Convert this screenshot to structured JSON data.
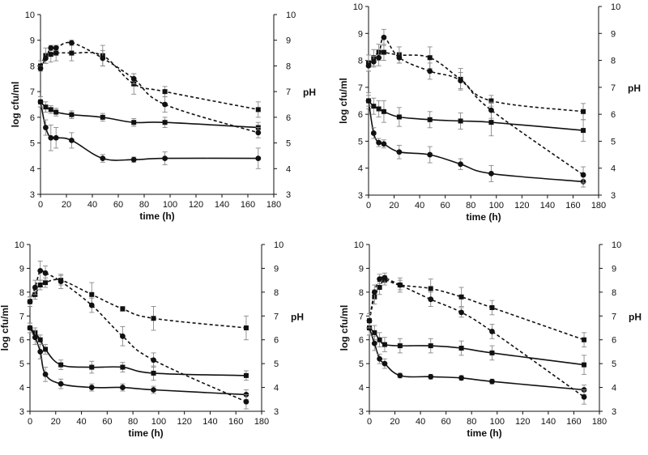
{
  "figure": {
    "panel_labels": [
      "top-left",
      "top-right",
      "bottom-left",
      "bottom-right"
    ]
  },
  "chart_data": [
    {
      "type": "line",
      "panel": "top-left",
      "xlabel": "time (h)",
      "ylabel": "log cfu/ml",
      "y2label": "pH",
      "xlim": [
        0,
        180
      ],
      "ylim": [
        3,
        10
      ],
      "y2lim": [
        3,
        10
      ],
      "xticks": [
        0,
        20,
        40,
        60,
        80,
        100,
        120,
        140,
        160,
        180
      ],
      "yticks": [
        3,
        4,
        5,
        6,
        7,
        8,
        9,
        10
      ],
      "series": [
        {
          "name": "count-square",
          "axis": "left",
          "line": "solid",
          "marker": "square",
          "x": [
            0,
            4,
            8,
            12,
            24,
            48,
            72,
            96,
            168
          ],
          "y": [
            6.6,
            6.4,
            6.3,
            6.2,
            6.1,
            6.0,
            5.8,
            5.8,
            5.6
          ],
          "err": [
            0.2,
            0.2,
            0.15,
            0.15,
            0.15,
            0.15,
            0.15,
            0.2,
            0.2
          ]
        },
        {
          "name": "count-circle",
          "axis": "left",
          "line": "solid",
          "marker": "circle",
          "x": [
            0,
            4,
            8,
            12,
            24,
            48,
            72,
            96,
            168
          ],
          "y": [
            6.6,
            5.6,
            5.2,
            5.2,
            5.1,
            4.4,
            4.35,
            4.4,
            4.4
          ],
          "err": [
            0.2,
            0.3,
            0.5,
            0.4,
            0.3,
            0.15,
            0.1,
            0.25,
            0.4
          ]
        },
        {
          "name": "ph-square",
          "axis": "right",
          "line": "dashed",
          "marker": "square",
          "x": [
            0,
            4,
            8,
            12,
            24,
            48,
            72,
            96,
            168
          ],
          "y": [
            8.0,
            8.4,
            8.45,
            8.5,
            8.5,
            8.4,
            7.3,
            7.0,
            6.3
          ],
          "err": [
            0.2,
            0.3,
            0.3,
            0.3,
            0.3,
            0.4,
            0.4,
            0.2,
            0.3
          ]
        },
        {
          "name": "ph-circle",
          "axis": "right",
          "line": "dashed",
          "marker": "circle",
          "x": [
            0,
            4,
            8,
            12,
            24,
            48,
            72,
            96,
            168
          ],
          "y": [
            7.9,
            8.3,
            8.7,
            8.7,
            8.9,
            8.3,
            7.5,
            6.5,
            5.4
          ],
          "err": [
            0.1,
            0.2,
            0.1,
            0.1,
            0.1,
            0.3,
            0.2,
            0.3,
            0.2
          ]
        }
      ]
    },
    {
      "type": "line",
      "panel": "top-right",
      "xlabel": "time (h)",
      "ylabel": "log cfu/ml",
      "y2label": "pH",
      "xlim": [
        0,
        180
      ],
      "ylim": [
        3,
        10
      ],
      "y2lim": [
        3,
        10
      ],
      "xticks": [
        0,
        20,
        40,
        60,
        80,
        100,
        120,
        140,
        160,
        180
      ],
      "yticks": [
        3,
        4,
        5,
        6,
        7,
        8,
        9,
        10
      ],
      "series": [
        {
          "name": "count-square",
          "axis": "left",
          "line": "solid",
          "marker": "square",
          "x": [
            0,
            4,
            8,
            12,
            24,
            48,
            72,
            96,
            168
          ],
          "y": [
            6.5,
            6.3,
            6.2,
            6.1,
            5.9,
            5.8,
            5.75,
            5.7,
            5.4
          ],
          "err": [
            0.3,
            0.3,
            0.3,
            0.4,
            0.35,
            0.3,
            0.3,
            0.5,
            0.4
          ]
        },
        {
          "name": "count-circle",
          "axis": "left",
          "line": "solid",
          "marker": "circle",
          "x": [
            0,
            4,
            8,
            12,
            24,
            48,
            72,
            96,
            168
          ],
          "y": [
            6.5,
            5.3,
            4.95,
            4.9,
            4.6,
            4.5,
            4.15,
            3.8,
            3.5
          ],
          "err": [
            0.2,
            0.2,
            0.15,
            0.15,
            0.25,
            0.3,
            0.2,
            0.3,
            0.2
          ]
        },
        {
          "name": "ph-square",
          "axis": "right",
          "line": "dashed",
          "marker": "square",
          "x": [
            0,
            4,
            8,
            12,
            24,
            48,
            72,
            96,
            168
          ],
          "y": [
            7.9,
            8.1,
            8.3,
            8.3,
            8.2,
            8.1,
            7.3,
            6.5,
            6.1
          ],
          "err": [
            0.3,
            0.3,
            0.3,
            0.3,
            0.3,
            0.4,
            0.4,
            0.2,
            0.3
          ]
        },
        {
          "name": "ph-circle",
          "axis": "right",
          "line": "dashed",
          "marker": "circle",
          "x": [
            0,
            4,
            8,
            12,
            24,
            48,
            72,
            96,
            168
          ],
          "y": [
            7.8,
            7.95,
            8.1,
            8.85,
            8.1,
            7.6,
            7.25,
            6.15,
            3.75
          ],
          "err": [
            0.2,
            0.2,
            0.3,
            0.3,
            0.2,
            0.3,
            0.3,
            0.3,
            0.3
          ]
        }
      ]
    },
    {
      "type": "line",
      "panel": "bottom-left",
      "xlabel": "time (h)",
      "ylabel": "log cfu/ml",
      "y2label": "pH",
      "xlim": [
        0,
        180
      ],
      "ylim": [
        3,
        10
      ],
      "y2lim": [
        3,
        10
      ],
      "xticks": [
        0,
        20,
        40,
        60,
        80,
        100,
        120,
        140,
        160,
        180
      ],
      "yticks": [
        3,
        4,
        5,
        6,
        7,
        8,
        9,
        10
      ],
      "series": [
        {
          "name": "count-square",
          "axis": "left",
          "line": "solid",
          "marker": "square",
          "x": [
            0,
            4,
            8,
            12,
            24,
            48,
            72,
            96,
            168
          ],
          "y": [
            6.5,
            6.3,
            6.0,
            5.6,
            4.95,
            4.85,
            4.85,
            4.6,
            4.5
          ],
          "err": [
            0.2,
            0.2,
            0.2,
            0.2,
            0.2,
            0.25,
            0.2,
            0.3,
            0.2
          ]
        },
        {
          "name": "count-circle",
          "axis": "left",
          "line": "solid",
          "marker": "circle",
          "x": [
            0,
            4,
            8,
            12,
            24,
            48,
            72,
            96,
            168
          ],
          "y": [
            6.5,
            6.1,
            5.5,
            4.55,
            4.15,
            4.0,
            4.0,
            3.9,
            3.7
          ],
          "err": [
            0.2,
            0.3,
            0.3,
            0.3,
            0.2,
            0.15,
            0.15,
            0.15,
            0.2
          ]
        },
        {
          "name": "ph-square",
          "axis": "right",
          "line": "dashed",
          "marker": "square",
          "x": [
            0,
            4,
            8,
            12,
            24,
            48,
            72,
            96,
            168
          ],
          "y": [
            7.6,
            7.9,
            8.3,
            8.4,
            8.5,
            7.9,
            7.3,
            6.9,
            6.5
          ],
          "err": [
            0.2,
            0.2,
            0.2,
            0.2,
            0.2,
            0.5,
            0.1,
            0.5,
            0.5
          ]
        },
        {
          "name": "ph-circle",
          "axis": "right",
          "line": "dashed",
          "marker": "circle",
          "x": [
            0,
            4,
            8,
            12,
            24,
            48,
            72,
            96,
            168
          ],
          "y": [
            7.6,
            8.2,
            8.9,
            8.8,
            8.45,
            7.45,
            6.15,
            5.15,
            3.4
          ],
          "err": [
            0.2,
            0.3,
            0.4,
            0.3,
            0.3,
            0.3,
            0.4,
            0.3,
            0.3
          ]
        }
      ]
    },
    {
      "type": "line",
      "panel": "bottom-right",
      "xlabel": "time (h)",
      "ylabel": "log cfu/ml",
      "y2label": "pH",
      "xlim": [
        0,
        180
      ],
      "ylim": [
        3,
        10
      ],
      "y2lim": [
        3,
        10
      ],
      "xticks": [
        0,
        20,
        40,
        60,
        80,
        100,
        120,
        140,
        160,
        180
      ],
      "yticks": [
        3,
        4,
        5,
        6,
        7,
        8,
        9,
        10
      ],
      "series": [
        {
          "name": "count-square",
          "axis": "left",
          "line": "solid",
          "marker": "square",
          "x": [
            0,
            4,
            8,
            12,
            24,
            48,
            72,
            96,
            168
          ],
          "y": [
            6.5,
            6.3,
            6.0,
            5.8,
            5.75,
            5.75,
            5.65,
            5.45,
            4.95
          ],
          "err": [
            0.3,
            0.3,
            0.3,
            0.3,
            0.3,
            0.3,
            0.3,
            0.3,
            0.4
          ]
        },
        {
          "name": "count-circle",
          "axis": "left",
          "line": "solid",
          "marker": "circle",
          "x": [
            0,
            4,
            8,
            12,
            24,
            48,
            72,
            96,
            168
          ],
          "y": [
            6.5,
            5.85,
            5.2,
            5.0,
            4.5,
            4.45,
            4.4,
            4.25,
            3.9
          ],
          "err": [
            0.3,
            0.3,
            0.2,
            0.2,
            0.1,
            0.1,
            0.1,
            0.1,
            0.2
          ]
        },
        {
          "name": "ph-square",
          "axis": "right",
          "line": "dashed",
          "marker": "square",
          "x": [
            0,
            4,
            8,
            12,
            24,
            48,
            72,
            96,
            168
          ],
          "y": [
            6.8,
            7.8,
            8.2,
            8.5,
            8.3,
            8.15,
            7.8,
            7.35,
            6.0
          ],
          "err": [
            0.3,
            0.3,
            0.3,
            0.2,
            0.2,
            0.4,
            0.4,
            0.3,
            0.3
          ]
        },
        {
          "name": "ph-circle",
          "axis": "right",
          "line": "dashed",
          "marker": "circle",
          "x": [
            0,
            4,
            8,
            12,
            24,
            48,
            72,
            96,
            168
          ],
          "y": [
            6.8,
            8.0,
            8.55,
            8.6,
            8.3,
            7.7,
            7.15,
            6.35,
            3.6
          ],
          "err": [
            0.3,
            0.3,
            0.2,
            0.2,
            0.3,
            0.3,
            0.2,
            0.3,
            0.3
          ]
        }
      ]
    }
  ]
}
